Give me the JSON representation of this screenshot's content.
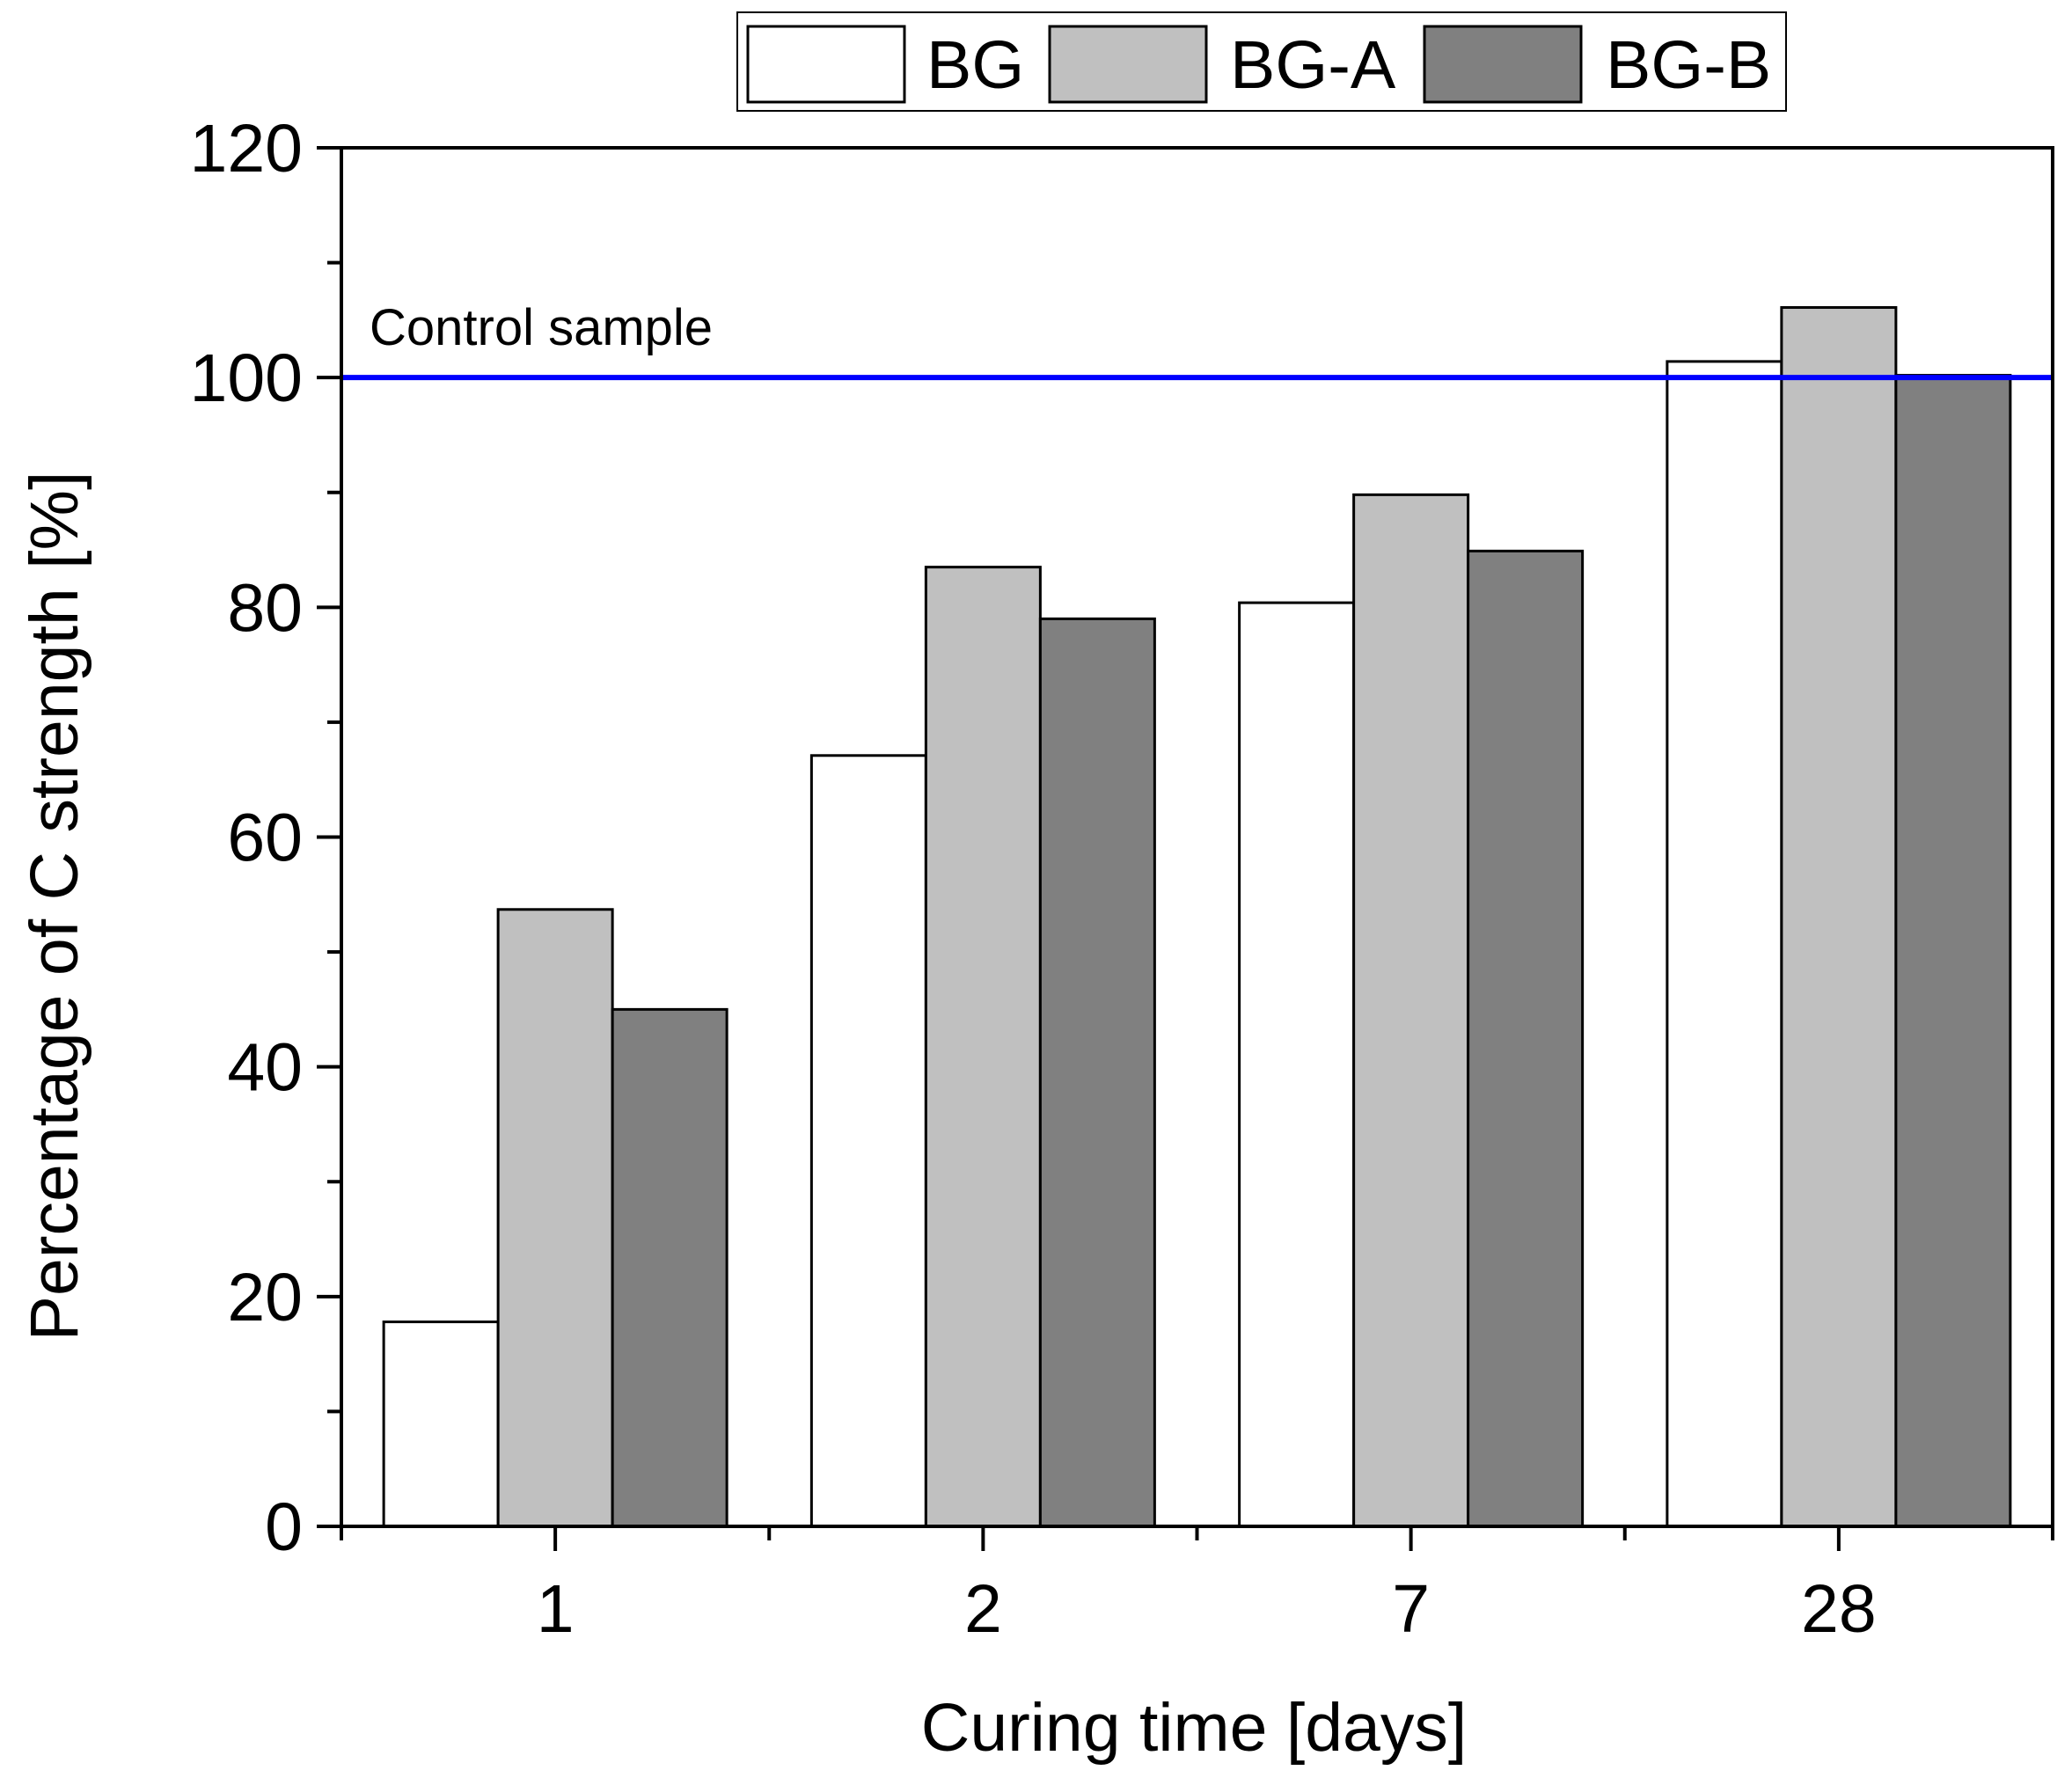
{
  "chart_data": {
    "type": "bar",
    "title": "",
    "xlabel": "Curing time [days]",
    "ylabel": "Percentage of C strength [%]",
    "ylim": [
      0,
      120
    ],
    "yticks": [
      0,
      20,
      40,
      60,
      80,
      100,
      120
    ],
    "categories": [
      "1",
      "2",
      "7",
      "28"
    ],
    "series": [
      {
        "name": "BG",
        "color": "#ffffff",
        "values": [
          17.8,
          67.1,
          80.4,
          101.4
        ]
      },
      {
        "name": "BG-A",
        "color": "#c0c0c0",
        "values": [
          53.7,
          83.5,
          89.8,
          106.1
        ]
      },
      {
        "name": "BG-B",
        "color": "#808080",
        "values": [
          45.0,
          79.0,
          84.9,
          100.2
        ]
      }
    ],
    "reference_line": {
      "label": "Control sample",
      "value": 100,
      "color": "#0000ff"
    },
    "legend_position": "top-center",
    "grid": false
  }
}
